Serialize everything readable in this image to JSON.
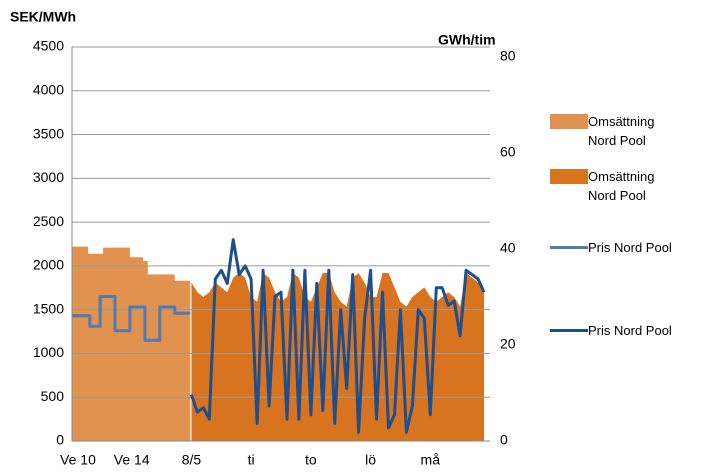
{
  "chart_data": {
    "type": "line",
    "y_title": "SEK/MWh",
    "y2_title": "GWh/tim",
    "xlim": [
      0,
      70
    ],
    "xticks": [
      {
        "value": 1,
        "label": "Ve 10"
      },
      {
        "value": 10,
        "label": "Ve 14"
      },
      {
        "value": 20,
        "label": "8/5"
      },
      {
        "value": 30,
        "label": "ti"
      },
      {
        "value": 40,
        "label": "to"
      },
      {
        "value": 50,
        "label": "lö"
      },
      {
        "value": 60,
        "label": "må"
      }
    ],
    "ylim": [
      0,
      4500
    ],
    "yticks": [
      0,
      500,
      1000,
      1500,
      2000,
      2500,
      3000,
      3500,
      4000,
      4500
    ],
    "y2lim": [
      0,
      80
    ],
    "y2ticks": [
      0,
      20,
      40,
      60,
      80
    ],
    "grid": true,
    "series": [
      {
        "name": "Omsättning Nord Pool",
        "kind": "area",
        "axis": "y2",
        "color": "#e0924e",
        "x": [
          0,
          2.7,
          2.7,
          5.2,
          5.2,
          9.7,
          9.7,
          11.9,
          11.9,
          12.7,
          12.7,
          17.2,
          17.2,
          19.8
        ],
        "values": [
          40.5,
          40.5,
          39.0,
          39.0,
          40.3,
          40.3,
          38.3,
          38.3,
          37.5,
          37.5,
          34.7,
          34.7,
          33.4,
          33.4
        ]
      },
      {
        "name": "Omsättning Nord Pool",
        "kind": "area",
        "axis": "y2",
        "color": "#d8731f",
        "x": [
          20,
          21,
          22,
          23,
          24,
          25,
          26,
          27,
          28,
          29,
          30,
          31,
          32,
          33,
          34,
          35,
          36,
          37,
          38,
          39,
          40,
          41,
          42,
          43,
          44,
          45,
          46,
          47,
          48,
          49,
          50,
          51,
          52,
          53,
          54,
          55,
          56,
          57,
          58,
          59,
          60,
          61,
          62,
          63,
          64,
          65,
          66,
          67,
          68,
          69
        ],
        "values": [
          33,
          31,
          30,
          31,
          33,
          32,
          31,
          34,
          35,
          34,
          30,
          29,
          35,
          34,
          31,
          29,
          30,
          35,
          34,
          30,
          29,
          32,
          35,
          35,
          31,
          29,
          28,
          34,
          35,
          33,
          30,
          30,
          35,
          35,
          32,
          29,
          28,
          30,
          31,
          32,
          30,
          29,
          30,
          31,
          30,
          28,
          35,
          34,
          33,
          31
        ]
      },
      {
        "name": "Pris Nord Pool",
        "kind": "line",
        "color": "#4f7bb0",
        "x": [
          0,
          3,
          3,
          4.7,
          4.7,
          7.2,
          7.2,
          9.7,
          9.7,
          12.2,
          12.2,
          14.7,
          14.7,
          17.2,
          17.2,
          19.8
        ],
        "values": [
          1430,
          1430,
          1310,
          1310,
          1650,
          1650,
          1260,
          1260,
          1530,
          1530,
          1150,
          1150,
          1530,
          1530,
          1460,
          1460
        ]
      },
      {
        "name": "Pris Nord Pool",
        "kind": "line",
        "color": "#1f4e8c",
        "x": [
          20,
          21,
          22,
          23,
          24,
          25,
          26,
          27,
          28,
          29,
          30,
          31,
          32,
          33,
          34,
          35,
          36,
          37,
          38,
          39,
          40,
          41,
          42,
          43,
          44,
          45,
          46,
          47,
          48,
          49,
          50,
          51,
          52,
          53,
          54,
          55,
          56,
          57,
          58,
          59,
          60,
          61,
          62,
          63,
          64,
          65,
          66,
          67,
          68,
          69
        ],
        "values": [
          530,
          330,
          380,
          250,
          1850,
          1950,
          1800,
          2300,
          1900,
          2000,
          1850,
          200,
          1950,
          400,
          1650,
          1700,
          250,
          1950,
          250,
          1950,
          300,
          1800,
          350,
          1950,
          200,
          1500,
          600,
          1900,
          100,
          1400,
          1950,
          250,
          1700,
          150,
          300,
          1500,
          100,
          400,
          1500,
          1400,
          300,
          1750,
          1750,
          1550,
          1600,
          1200,
          1950,
          1900,
          1850,
          1700
        ]
      }
    ]
  }
}
